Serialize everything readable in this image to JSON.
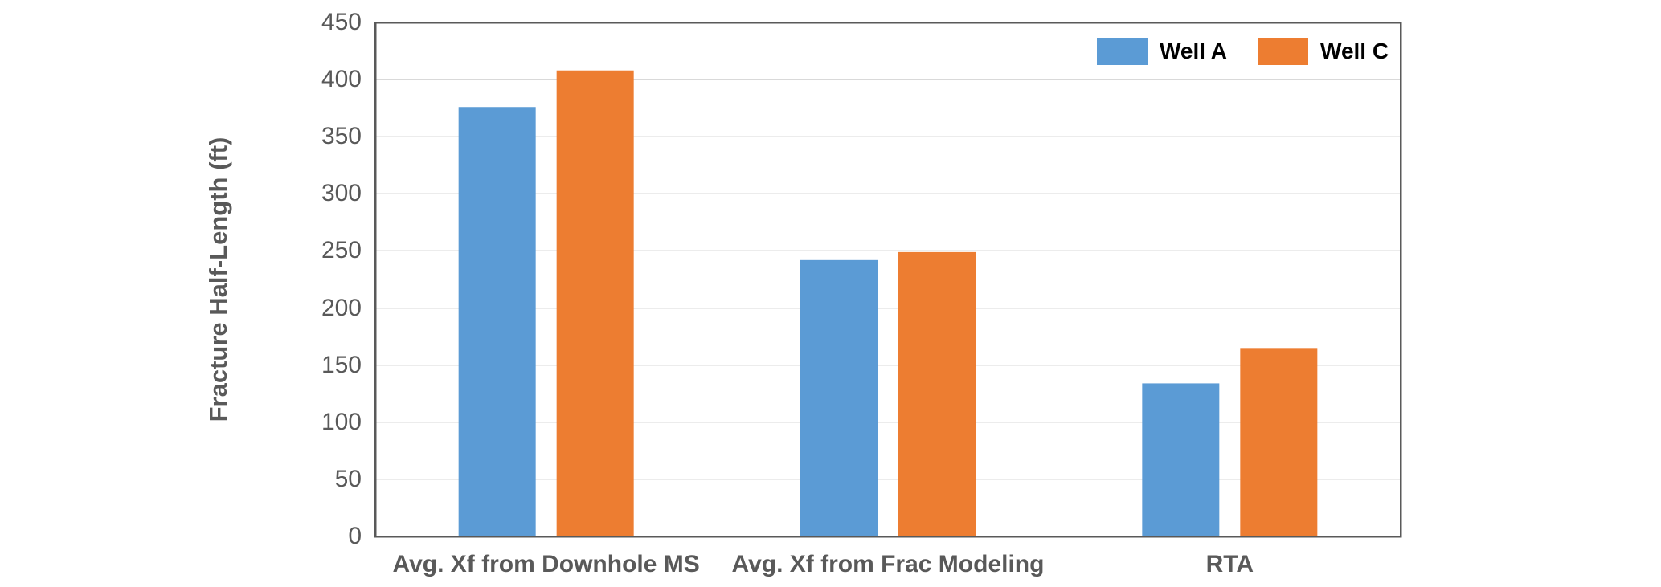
{
  "chart_data": {
    "type": "bar",
    "title": "",
    "categories": [
      "Avg. Xf from Downhole MS",
      "Avg. Xf from Frac Modeling",
      "RTA"
    ],
    "series": [
      {
        "name": "Well A",
        "color": "#5B9BD5",
        "values": [
          376,
          242,
          134
        ]
      },
      {
        "name": "Well C",
        "color": "#ED7D31",
        "values": [
          408,
          249,
          165
        ]
      }
    ],
    "xlabel": "",
    "ylabel": "Fracture Half-Length (ft)",
    "ylim": [
      0,
      450
    ],
    "ytick_step": 50,
    "grid": true,
    "legend_position": "top-right-inside"
  },
  "colors": {
    "background": "#FFFFFF",
    "axis_text": "#595959",
    "gridline": "#D9D9D9",
    "plot_border": "#595959",
    "legend_text": "#000000"
  }
}
